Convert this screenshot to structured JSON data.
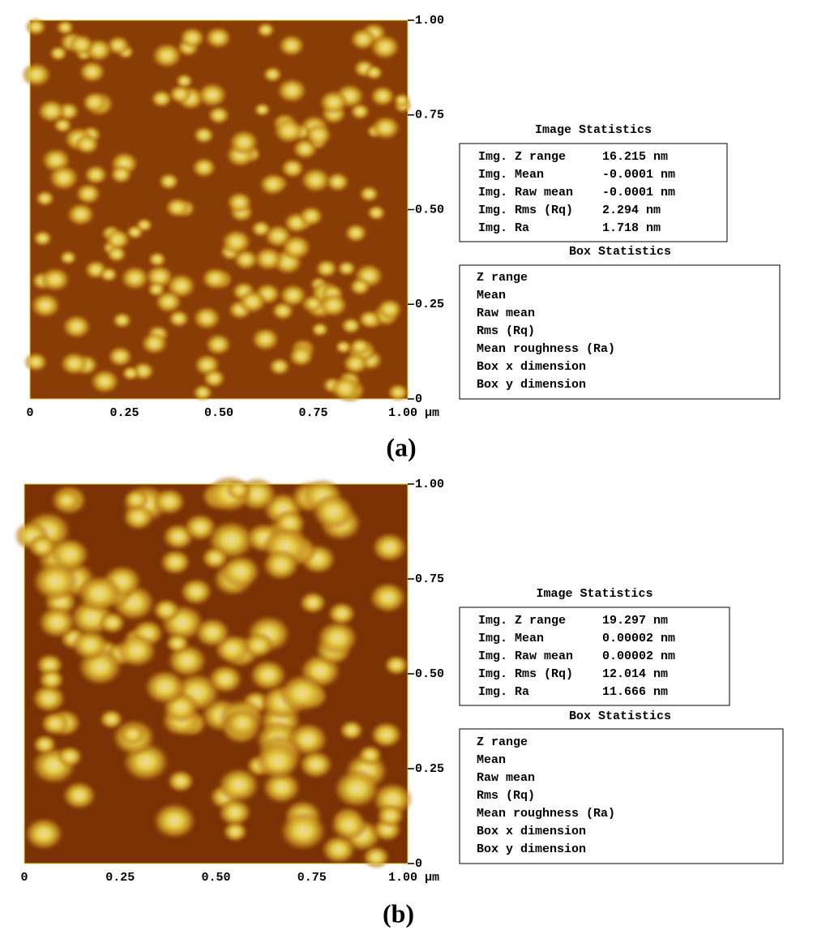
{
  "panels": [
    {
      "caption": "(a)",
      "y_axis": [
        "1.00",
        "0.75",
        "0.50",
        "0.25",
        "0"
      ],
      "x_axis": [
        "0",
        "0.25",
        "0.50",
        "0.75",
        "1.00 μm"
      ],
      "image_statistics": {
        "title": "Image Statistics",
        "rows": [
          [
            "Img. Z range",
            "16.215 nm"
          ],
          [
            "Img. Mean",
            "-0.0001 nm"
          ],
          [
            "Img. Raw mean",
            "-0.0001 nm"
          ],
          [
            "Img. Rms (Rq)",
            "2.294 nm"
          ],
          [
            "Img. Ra",
            "1.718 nm"
          ]
        ]
      },
      "box_statistics": {
        "title": "Box Statistics",
        "rows": [
          "Z range",
          "Mean",
          "Raw mean",
          "Rms (Rq)",
          "Mean roughness (Ra)",
          "Box x dimension",
          "Box y dimension"
        ]
      }
    },
    {
      "caption": "(b)",
      "y_axis": [
        "1.00",
        "0.75",
        "0.50",
        "0.25",
        "0"
      ],
      "x_axis": [
        "0",
        "0.25",
        "0.50",
        "0.75",
        "1.00 μm"
      ],
      "image_statistics": {
        "title": "Image Statistics",
        "rows": [
          [
            "Img. Z range",
            "19.297 nm"
          ],
          [
            "Img. Mean",
            "0.00002 nm"
          ],
          [
            "Img. Raw mean",
            "0.00002 nm"
          ],
          [
            "Img. Rms (Rq)",
            "12.014 nm"
          ],
          [
            "Img. Ra",
            "11.666 nm"
          ]
        ]
      },
      "box_statistics": {
        "title": "Box Statistics",
        "rows": [
          "Z range",
          "Mean",
          "Raw mean",
          "Rms (Rq)",
          "Mean roughness (Ra)",
          "Box x dimension",
          "Box y dimension"
        ]
      }
    }
  ]
}
